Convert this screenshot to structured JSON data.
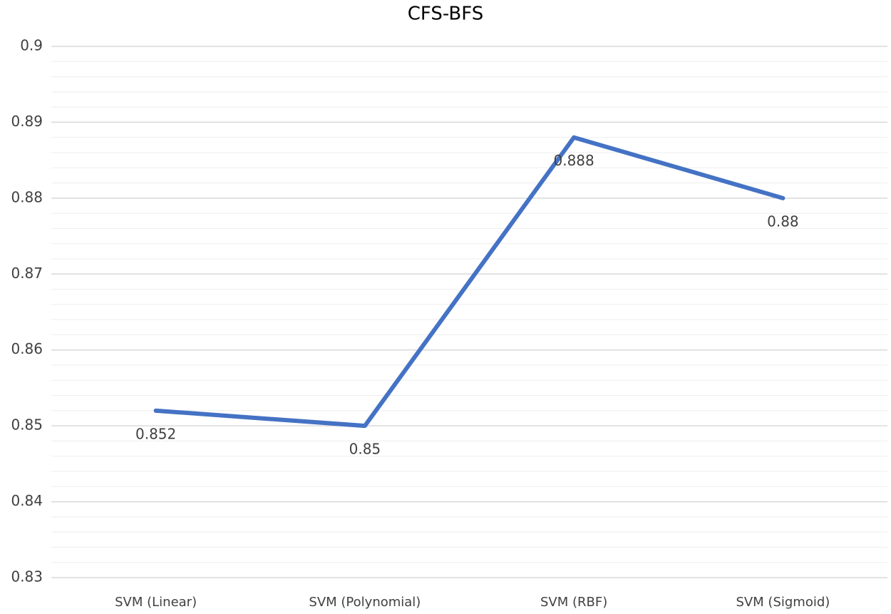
{
  "chart_data": {
    "type": "line",
    "title": "CFS-BFS",
    "categories": [
      "SVM (Linear)",
      "SVM (Polynomial)",
      "SVM (RBF)",
      "SVM (Sigmoid)"
    ],
    "values": [
      0.852,
      0.85,
      0.888,
      0.88
    ],
    "color": "#4472c4",
    "ylim": [
      0.83,
      0.9
    ],
    "yticks": [
      0.83,
      0.84,
      0.85,
      0.86,
      0.87,
      0.88,
      0.89,
      0.9
    ],
    "yminorticks": [
      0.832,
      0.834,
      0.836,
      0.838,
      0.842,
      0.844,
      0.846,
      0.848,
      0.852,
      0.854,
      0.856,
      0.858,
      0.862,
      0.864,
      0.866,
      0.868,
      0.872,
      0.874,
      0.876,
      0.878,
      0.882,
      0.884,
      0.886,
      0.888,
      0.892,
      0.894,
      0.896,
      0.898
    ],
    "grid": true,
    "data_labels": true
  }
}
